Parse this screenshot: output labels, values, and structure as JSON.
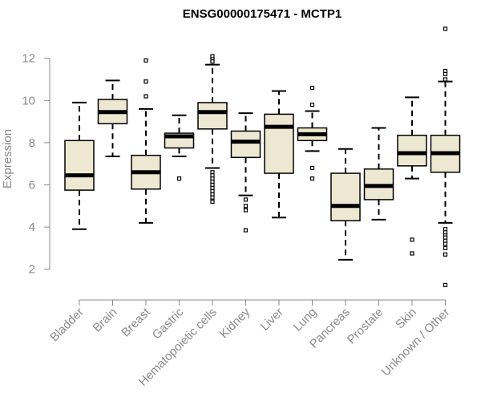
{
  "chart_data": {
    "type": "boxplot",
    "title": "ENSG00000175471 - MCTP1",
    "xlabel": "",
    "ylabel": "Expression",
    "ylim": [
      1,
      13.7
    ],
    "yticks": [
      2,
      4,
      6,
      8,
      10,
      12
    ],
    "colors": {
      "box_fill": "#eee8d2",
      "box_stroke": "#000000",
      "axis": "#888888",
      "text": "#8a8a8a"
    },
    "categories": [
      "Bladder",
      "Brain",
      "Breast",
      "Gastric",
      "Hematopoietic cells",
      "Kidney",
      "Liver",
      "Lung",
      "Pancreas",
      "Prostate",
      "Skin",
      "Unknown / Other"
    ],
    "boxes": [
      {
        "q1": 5.75,
        "median": 6.45,
        "q3": 8.1,
        "whisker_low": 3.9,
        "whisker_high": 9.9,
        "outliers": []
      },
      {
        "q1": 8.9,
        "median": 9.45,
        "q3": 10.05,
        "whisker_low": 7.35,
        "whisker_high": 10.95,
        "outliers": []
      },
      {
        "q1": 5.8,
        "median": 6.6,
        "q3": 7.4,
        "whisker_low": 4.2,
        "whisker_high": 9.6,
        "outliers": [
          10.2,
          10.9,
          11.9
        ]
      },
      {
        "q1": 7.75,
        "median": 8.3,
        "q3": 8.45,
        "whisker_low": 7.35,
        "whisker_high": 9.3,
        "outliers": [
          6.3
        ]
      },
      {
        "q1": 8.65,
        "median": 9.45,
        "q3": 9.9,
        "whisker_low": 6.8,
        "whisker_high": 11.7,
        "outliers": [
          12.1,
          11.95,
          11.85,
          6.6,
          6.45,
          6.3,
          6.15,
          6.0,
          5.85,
          5.7,
          5.55,
          5.4,
          5.2
        ]
      },
      {
        "q1": 7.3,
        "median": 8.05,
        "q3": 8.55,
        "whisker_low": 5.5,
        "whisker_high": 9.4,
        "outliers": [
          5.3,
          5.0,
          4.8,
          3.85
        ]
      },
      {
        "q1": 6.55,
        "median": 8.75,
        "q3": 9.35,
        "whisker_low": 4.45,
        "whisker_high": 10.45,
        "outliers": []
      },
      {
        "q1": 8.1,
        "median": 8.4,
        "q3": 8.7,
        "whisker_low": 7.6,
        "whisker_high": 9.5,
        "outliers": [
          10.6,
          9.8,
          6.8,
          6.3
        ]
      },
      {
        "q1": 4.3,
        "median": 5.0,
        "q3": 6.55,
        "whisker_low": 2.45,
        "whisker_high": 7.7,
        "outliers": []
      },
      {
        "q1": 5.3,
        "median": 5.95,
        "q3": 6.75,
        "whisker_low": 4.35,
        "whisker_high": 8.7,
        "outliers": []
      },
      {
        "q1": 6.9,
        "median": 7.5,
        "q3": 8.35,
        "whisker_low": 6.3,
        "whisker_high": 10.15,
        "outliers": [
          3.4,
          2.75
        ]
      },
      {
        "q1": 6.6,
        "median": 7.5,
        "q3": 8.35,
        "whisker_low": 4.2,
        "whisker_high": 10.9,
        "outliers": [
          13.4,
          11.4,
          11.25,
          11.0,
          3.9,
          3.75,
          3.6,
          3.5,
          3.35,
          3.2,
          3.0,
          2.7,
          1.25
        ]
      }
    ]
  }
}
